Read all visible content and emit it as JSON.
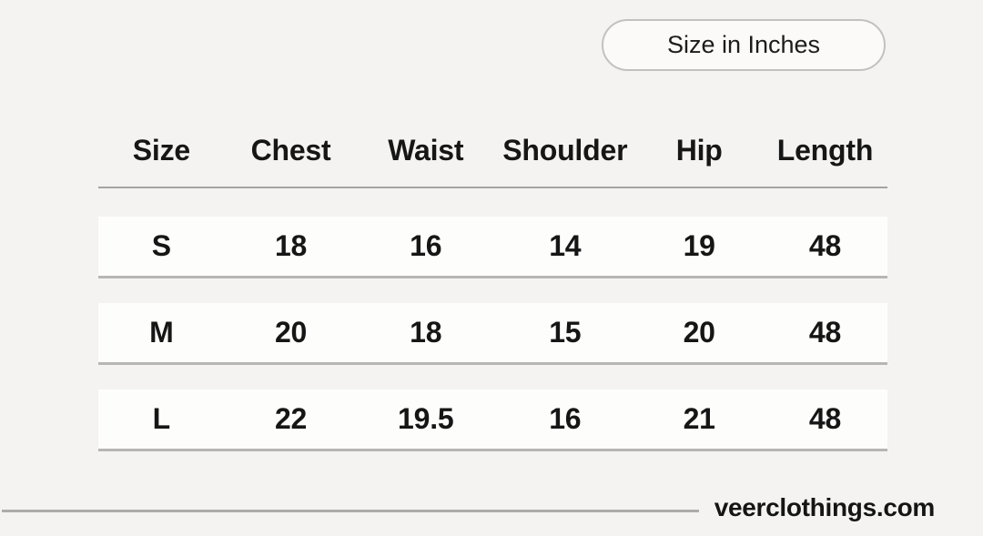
{
  "unit_toggle": {
    "label": "Size in Inches"
  },
  "size_chart": {
    "columns": [
      "Size",
      "Chest",
      "Waist",
      "Shoulder",
      "Hip",
      "Length"
    ],
    "rows": [
      {
        "cells": [
          "S",
          "18",
          "16",
          "14",
          "19",
          "48"
        ]
      },
      {
        "cells": [
          "M",
          "20",
          "18",
          "15",
          "20",
          "48"
        ]
      },
      {
        "cells": [
          "L",
          "22",
          "19.5",
          "16",
          "21",
          "48"
        ]
      }
    ]
  },
  "footer": {
    "website": "veerclothings.com"
  },
  "colors": {
    "background": "#f4f3f1",
    "row_background": "#fdfdfc",
    "rule_gray": "#a5a3a1",
    "row_border_gray": "#b8b6b4",
    "pill_border": "#c3c1bf",
    "text": "#1a1a1a"
  },
  "chart_data": {
    "type": "table",
    "title": "Size in Inches",
    "columns": [
      "Size",
      "Chest",
      "Waist",
      "Shoulder",
      "Hip",
      "Length"
    ],
    "rows": [
      [
        "S",
        18,
        16,
        14,
        19,
        48
      ],
      [
        "M",
        20,
        18,
        15,
        20,
        48
      ],
      [
        "L",
        22,
        19.5,
        16,
        21,
        48
      ]
    ],
    "footer": "veerclothings.com"
  }
}
